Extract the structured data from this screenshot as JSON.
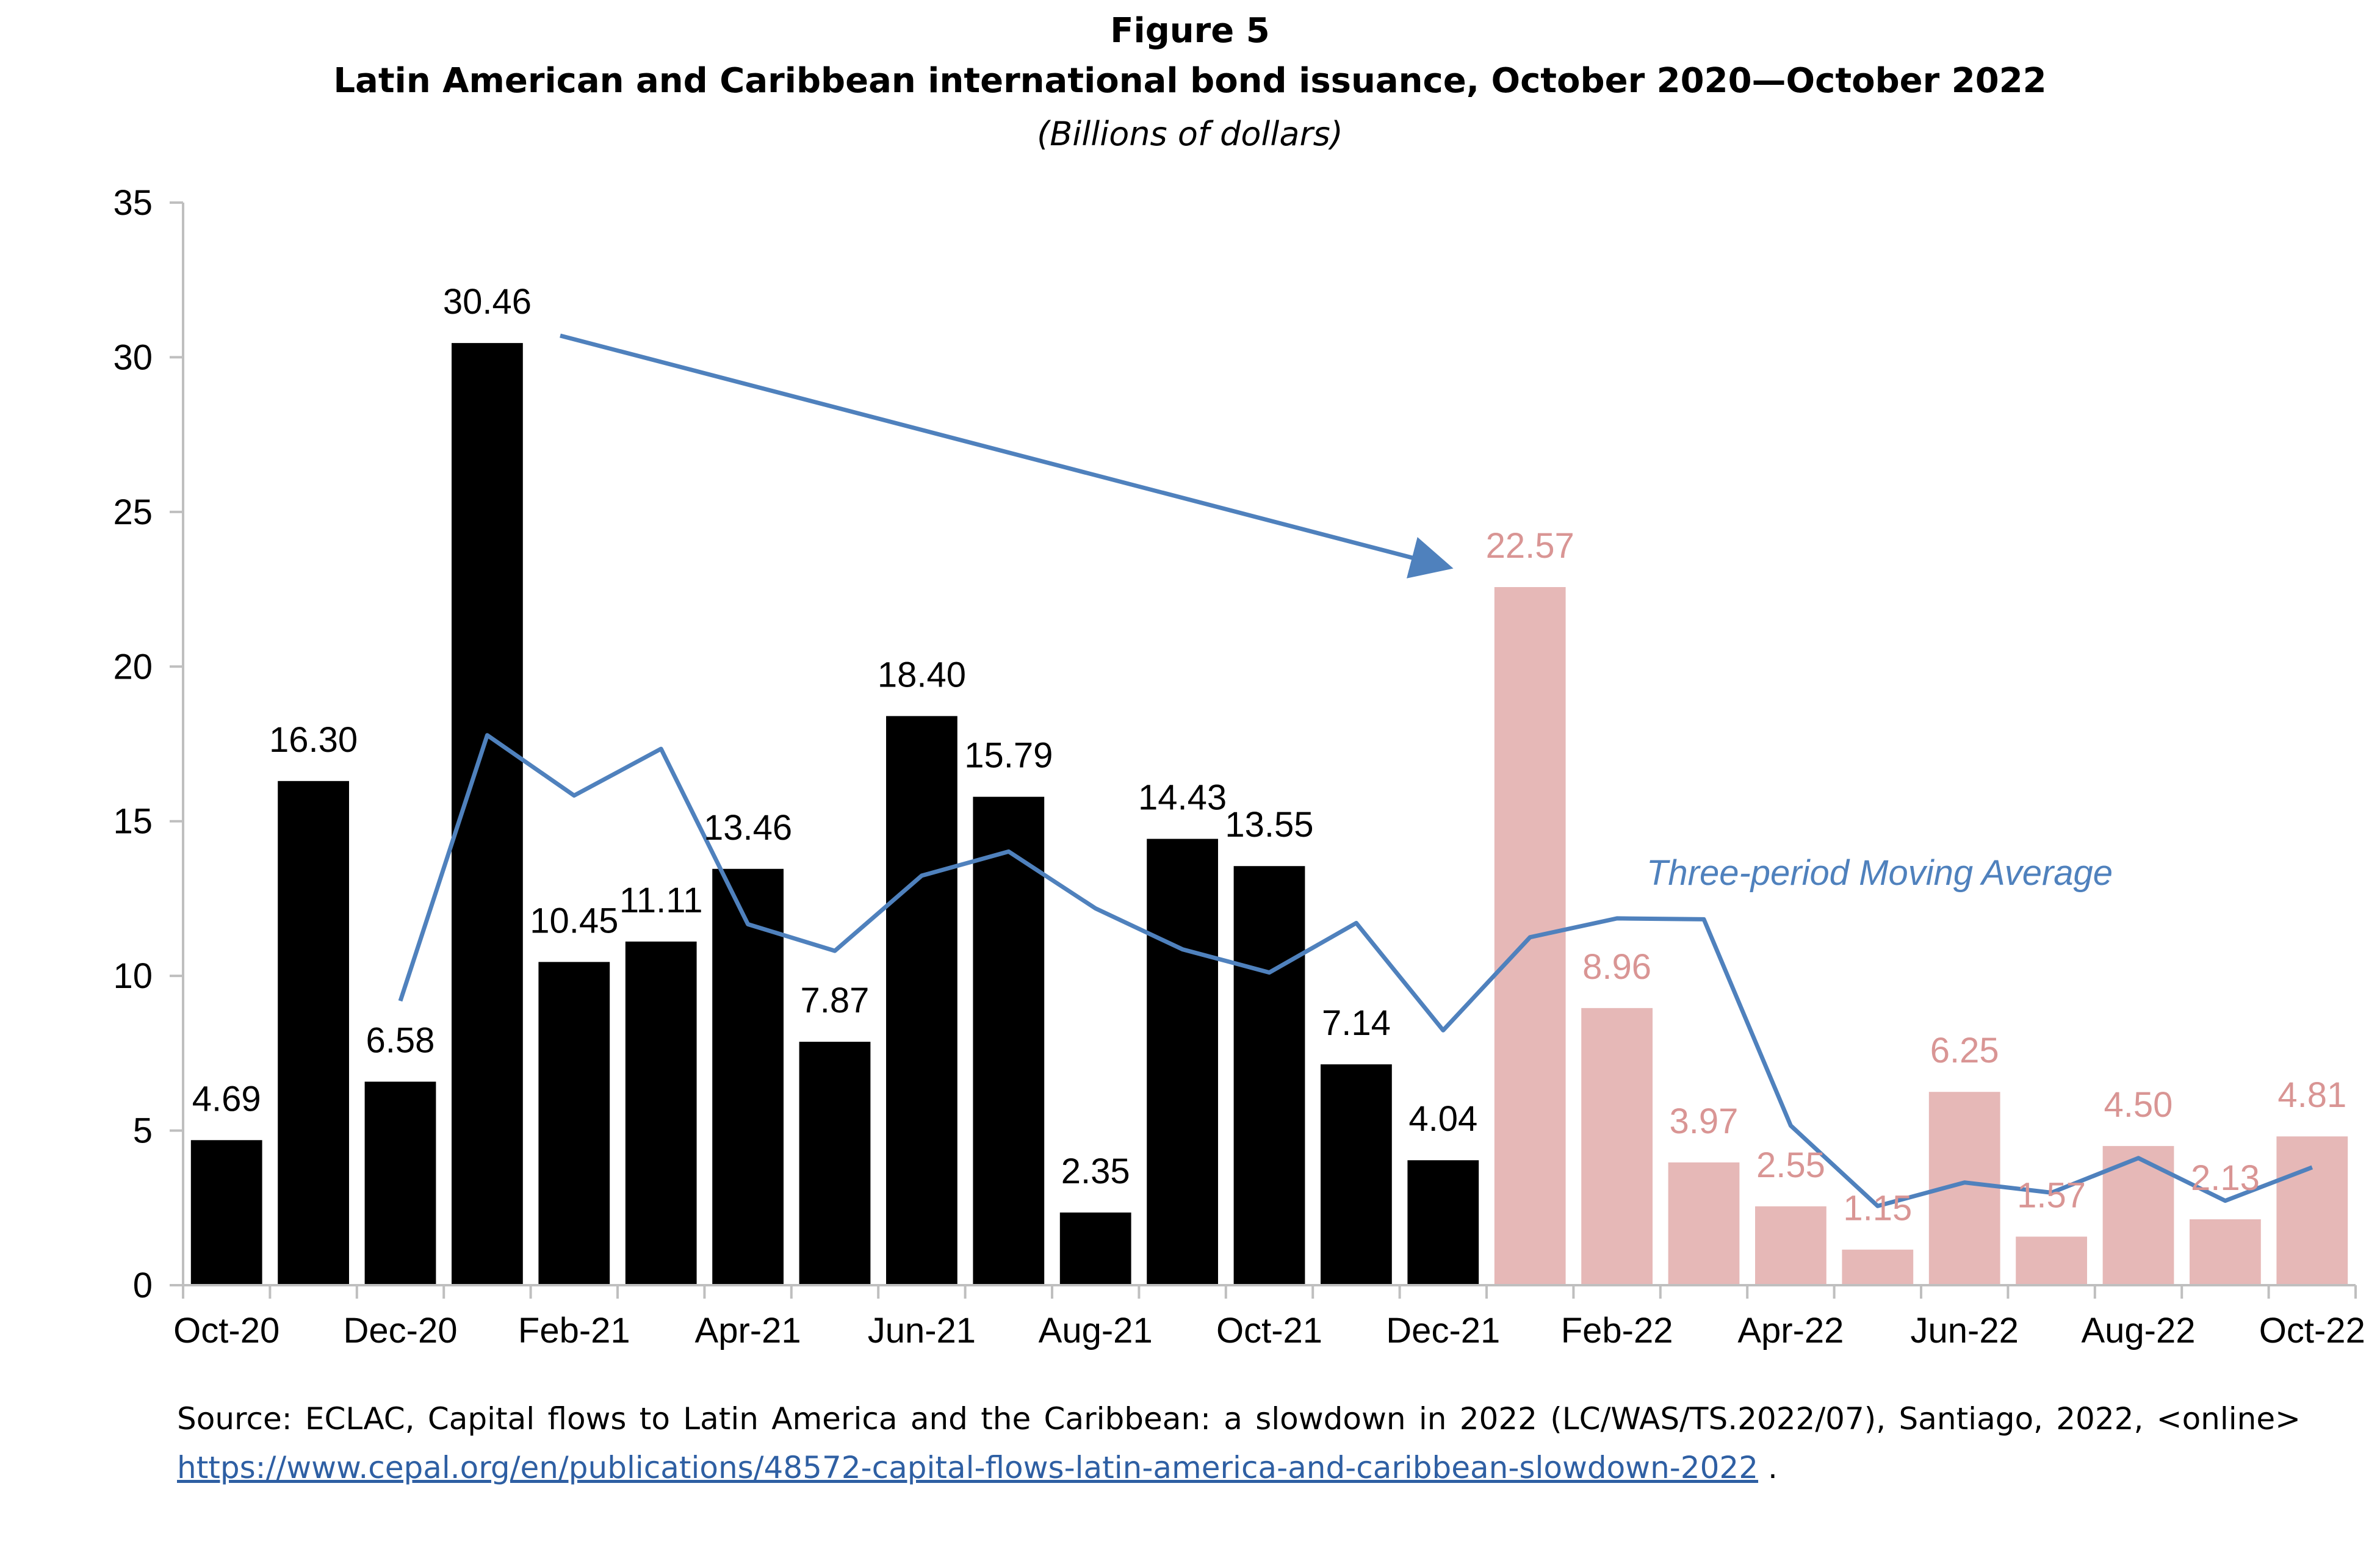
{
  "figure_label": "Figure 5",
  "title": "Latin American and Caribbean international bond issuance, October 2020—October 2022",
  "subtitle": "(Billions of dollars)",
  "source": {
    "text": "Source: ECLAC, Capital flows to Latin America and the Caribbean: a slowdown in 2022 (LC/WAS/TS.2022/07), Santiago, 2022, <online>",
    "link": "https://www.cepal.org/en/publications/48572-capital-flows-latin-america-and-caribbean-slowdown-2022",
    "suffix": " ."
  },
  "chart_data": {
    "type": "bar",
    "categories": [
      "Oct-20",
      "Nov-20",
      "Dec-20",
      "Jan-21",
      "Feb-21",
      "Mar-21",
      "Apr-21",
      "May-21",
      "Jun-21",
      "Jul-21",
      "Aug-21",
      "Sep-21",
      "Oct-21",
      "Nov-21",
      "Dec-21",
      "Jan-22",
      "Feb-22",
      "Mar-22",
      "Apr-22",
      "May-22",
      "Jun-22",
      "Jul-22",
      "Aug-22",
      "Sep-22",
      "Oct-22"
    ],
    "tick_labels": [
      "Oct-20",
      "",
      "Dec-20",
      "",
      "Feb-21",
      "",
      "Apr-21",
      "",
      "Jun-21",
      "",
      "Aug-21",
      "",
      "Oct-21",
      "",
      "Dec-21",
      "",
      "Feb-22",
      "",
      "Apr-22",
      "",
      "Jun-22",
      "",
      "Aug-22",
      "",
      "Oct-22"
    ],
    "values": [
      4.69,
      16.3,
      6.58,
      30.46,
      10.45,
      11.11,
      13.46,
      7.87,
      18.4,
      15.79,
      2.35,
      14.43,
      13.55,
      7.14,
      4.04,
      22.57,
      8.96,
      3.97,
      2.55,
      1.15,
      6.25,
      1.57,
      4.5,
      2.13,
      4.81
    ],
    "value_labels": [
      "4.69",
      "16.30",
      "6.58",
      "30.46",
      "10.45",
      "11.11",
      "13.46",
      "7.87",
      "18.40",
      "15.79",
      "2.35",
      "14.43",
      "13.55",
      "7.14",
      "4.04",
      "22.57",
      "8.96",
      "3.97",
      "2.55",
      "1.15",
      "6.25",
      "1.57",
      "4.50",
      "2.13",
      "4.81"
    ],
    "moving_average": {
      "name": "Three-period Moving Average",
      "values": [
        null,
        null,
        9.19,
        17.78,
        15.83,
        17.34,
        11.67,
        10.81,
        13.24,
        14.02,
        12.18,
        10.86,
        10.11,
        11.71,
        8.24,
        11.25,
        11.86,
        11.83,
        5.16,
        2.56,
        3.32,
        2.99,
        4.11,
        2.73,
        3.81
      ]
    },
    "ylim": [
      0,
      35
    ],
    "yticks": [
      "0",
      "5",
      "10",
      "15",
      "20",
      "25",
      "30",
      "35"
    ],
    "grid": false,
    "colors": {
      "bars_2020_2021": "#000000",
      "bars_2022": "#e6b8b7",
      "label_2022": "#d99594",
      "line": "#4f81bd"
    }
  }
}
